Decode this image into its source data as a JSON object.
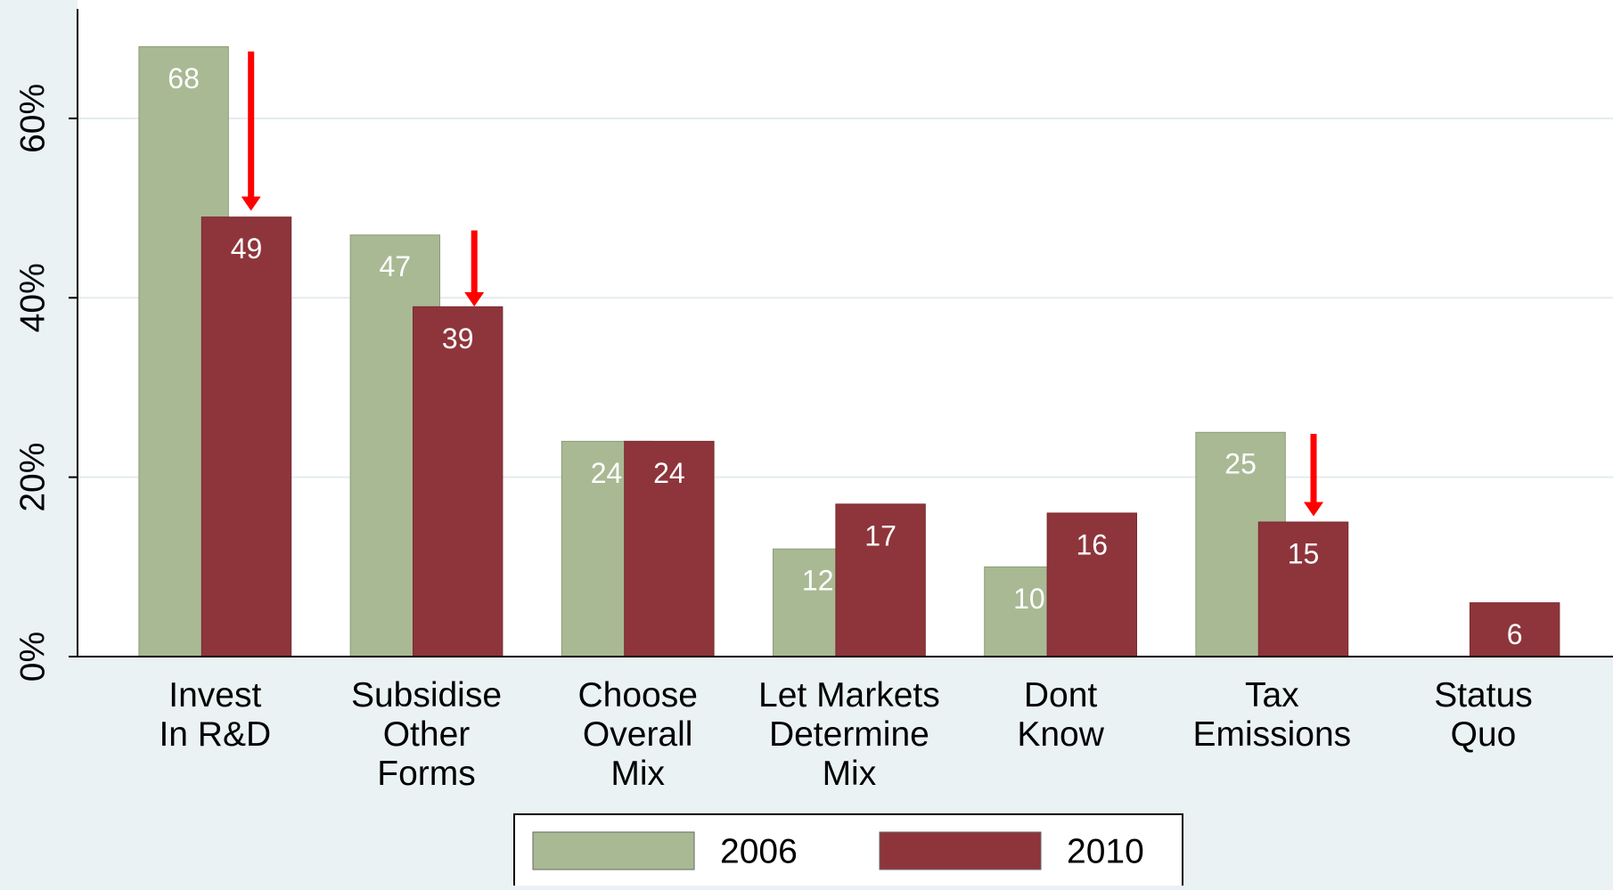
{
  "chart_data": {
    "type": "bar",
    "categories": [
      "Invest\nIn R&D",
      "Subsidise\nOther\nForms",
      "Choose\nOverall\nMix",
      "Let Markets\nDetermine\nMix",
      "Dont\nKnow",
      "Tax\nEmissions",
      "Status\nQuo"
    ],
    "series": [
      {
        "name": "2006",
        "color": "#a9b994",
        "values": [
          68,
          47,
          24,
          12,
          10,
          25,
          null
        ]
      },
      {
        "name": "2010",
        "color": "#8e353b",
        "values": [
          49,
          39,
          24,
          17,
          16,
          15,
          6
        ]
      }
    ],
    "ylim": [
      0,
      73
    ],
    "yticks": [
      {
        "value": 0,
        "label": "0%"
      },
      {
        "value": 20,
        "label": "20%"
      },
      {
        "value": 40,
        "label": "40%"
      },
      {
        "value": 60,
        "label": "60%"
      }
    ],
    "grid": true,
    "legend": "bottom"
  }
}
